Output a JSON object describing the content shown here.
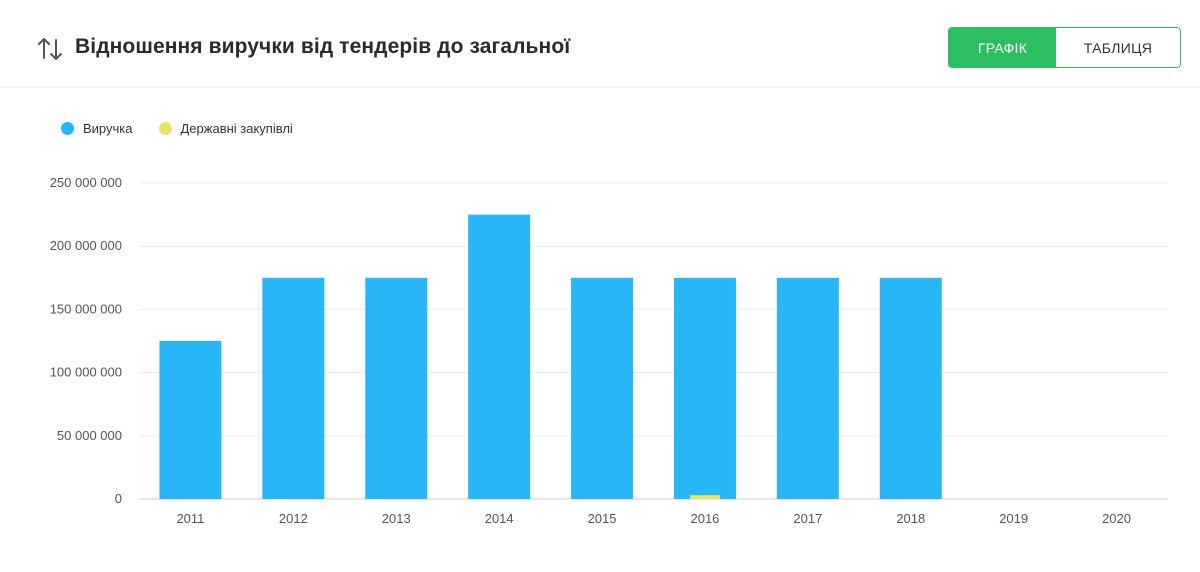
{
  "header": {
    "title": "Відношення виручки від тендерів до загальної",
    "sort_icon": "sort-arrows-icon",
    "toggle": {
      "chart_label": "ГРАФІК",
      "table_label": "ТАБЛИЦЯ",
      "active": "chart"
    }
  },
  "colors": {
    "revenue": "#29b6f6",
    "procurement": "#e8e36a",
    "accent": "#2dbd62"
  },
  "chart_data": {
    "type": "bar",
    "categories": [
      "2011",
      "2012",
      "2013",
      "2014",
      "2015",
      "2016",
      "2017",
      "2018",
      "2019",
      "2020"
    ],
    "series": [
      {
        "name": "Виручка",
        "values": [
          125000000,
          175000000,
          175000000,
          225000000,
          175000000,
          175000000,
          175000000,
          175000000,
          0,
          0
        ]
      },
      {
        "name": "Державні закупівлі",
        "values": [
          0,
          0,
          0,
          0,
          0,
          3000000,
          0,
          0,
          0,
          0
        ]
      }
    ],
    "yticks": [
      "0",
      "50 000 000",
      "100 000 000",
      "150 000 000",
      "200 000 000",
      "250 000 000"
    ],
    "ylim": [
      0,
      250000000
    ],
    "grid": true,
    "legend": "top-left"
  }
}
